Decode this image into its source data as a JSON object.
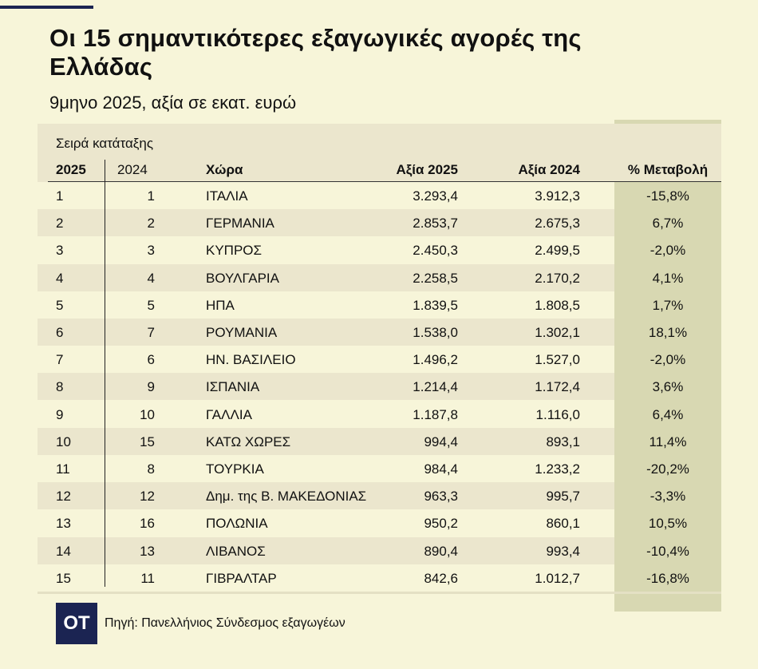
{
  "title": "Οι 15 σημαντικότερες εξαγωγικές αγορές της Ελλάδας",
  "subtitle": "9μηνο 2025, αξία σε εκατ. ευρώ",
  "rank_caption": "Σειρά κατάταξης",
  "headers": {
    "r2025": "2025",
    "r2024": "2024",
    "country": "Χώρα",
    "v2025": "Αξία 2025",
    "v2024": "Αξία 2024",
    "pct": "% Μεταβολή"
  },
  "rows": [
    {
      "r2025": "1",
      "r2024": "1",
      "country": "ΙΤΑΛΙΑ",
      "v2025": "3.293,4",
      "v2024": "3.912,3",
      "pct": "-15,8%"
    },
    {
      "r2025": "2",
      "r2024": "2",
      "country": "ΓΕΡΜΑΝΙΑ",
      "v2025": "2.853,7",
      "v2024": "2.675,3",
      "pct": "6,7%"
    },
    {
      "r2025": "3",
      "r2024": "3",
      "country": "ΚΥΠΡΟΣ",
      "v2025": "2.450,3",
      "v2024": "2.499,5",
      "pct": "-2,0%"
    },
    {
      "r2025": "4",
      "r2024": "4",
      "country": "ΒΟΥΛΓΑΡΙΑ",
      "v2025": "2.258,5",
      "v2024": "2.170,2",
      "pct": "4,1%"
    },
    {
      "r2025": "5",
      "r2024": "5",
      "country": "ΗΠΑ",
      "v2025": "1.839,5",
      "v2024": "1.808,5",
      "pct": "1,7%"
    },
    {
      "r2025": "6",
      "r2024": "7",
      "country": "ΡΟΥΜΑΝΙΑ",
      "v2025": "1.538,0",
      "v2024": "1.302,1",
      "pct": "18,1%"
    },
    {
      "r2025": "7",
      "r2024": "6",
      "country": "ΗΝ. ΒΑΣΙΛΕΙΟ",
      "v2025": "1.496,2",
      "v2024": "1.527,0",
      "pct": "-2,0%"
    },
    {
      "r2025": "8",
      "r2024": "9",
      "country": "ΙΣΠΑΝΙΑ",
      "v2025": "1.214,4",
      "v2024": "1.172,4",
      "pct": "3,6%"
    },
    {
      "r2025": "9",
      "r2024": "10",
      "country": "ΓΑΛΛΙΑ",
      "v2025": "1.187,8",
      "v2024": "1.116,0",
      "pct": "6,4%"
    },
    {
      "r2025": "10",
      "r2024": "15",
      "country": "ΚΑΤΩ ΧΩΡΕΣ",
      "v2025": "994,4",
      "v2024": "893,1",
      "pct": "11,4%"
    },
    {
      "r2025": "11",
      "r2024": "8",
      "country": "ΤΟΥΡΚΙΑ",
      "v2025": "984,4",
      "v2024": "1.233,2",
      "pct": "-20,2%"
    },
    {
      "r2025": "12",
      "r2024": "12",
      "country": "Δημ. της Β. ΜΑΚΕΔΟΝΙΑΣ",
      "v2025": "963,3",
      "v2024": "995,7",
      "pct": "-3,3%"
    },
    {
      "r2025": "13",
      "r2024": "16",
      "country": "ΠΟΛΩΝΙΑ",
      "v2025": "950,2",
      "v2024": "860,1",
      "pct": "10,5%"
    },
    {
      "r2025": "14",
      "r2024": "13",
      "country": "ΛΙΒΑΝΟΣ",
      "v2025": "890,4",
      "v2024": "993,4",
      "pct": "-10,4%"
    },
    {
      "r2025": "15",
      "r2024": "11",
      "country": "ΓΙΒΡΑΛΤΑΡ",
      "v2025": "842,6",
      "v2024": "1.012,7",
      "pct": "-16,8%"
    }
  ],
  "logo": "ΟΤ",
  "source": "Πηγή: Πανελλήνιος Σύνδεσμος εξαγωγέων",
  "colors": {
    "background": "#f7f5d9",
    "band": "#ebe6cd",
    "pct_column": "#d8d8b2",
    "navy": "#1b2452"
  }
}
